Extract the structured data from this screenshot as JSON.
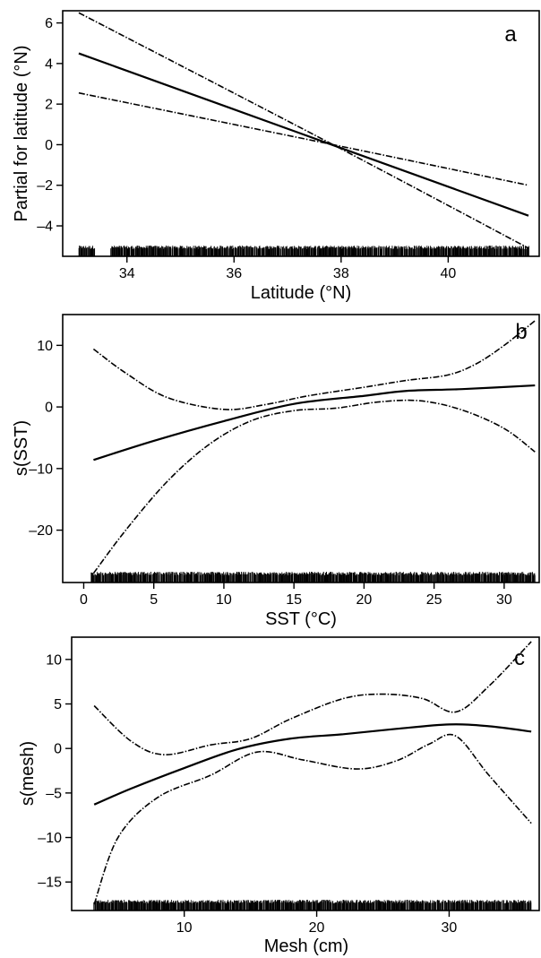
{
  "chart_data": [
    {
      "type": "line",
      "panel_label": "a",
      "xlabel": "Latitude (°N)",
      "ylabel": "Partial for latitude (°N)",
      "xlim": [
        32.8,
        41.7
      ],
      "ylim": [
        -5.5,
        6.6
      ],
      "xticks": [
        34,
        36,
        38,
        40
      ],
      "yticks": [
        -4,
        -2,
        0,
        2,
        4,
        6
      ],
      "series": [
        {
          "style": "solid",
          "x": [
            33.1,
            41.5
          ],
          "y": [
            4.5,
            -3.5
          ]
        },
        {
          "style": "dashdot",
          "x": [
            33.1,
            37.85,
            41.5
          ],
          "y": [
            6.5,
            0.0,
            -5.1
          ]
        },
        {
          "style": "dashdot",
          "x": [
            33.1,
            37.85,
            41.5
          ],
          "y": [
            2.55,
            0.0,
            -2.0
          ]
        }
      ],
      "rug": {
        "segments": [
          [
            33.1,
            33.4
          ],
          [
            33.7,
            41.5
          ]
        ]
      }
    },
    {
      "type": "line",
      "panel_label": "b",
      "xlabel": "SST (°C)",
      "ylabel": "s(SST)",
      "xlim": [
        -1.5,
        32.5
      ],
      "ylim": [
        -28.5,
        15
      ],
      "xticks": [
        0,
        5,
        10,
        15,
        20,
        25,
        30
      ],
      "yticks": [
        -20,
        -10,
        0,
        10
      ],
      "series": [
        {
          "style": "solid",
          "x": [
            0.7,
            5,
            10,
            15,
            20,
            23,
            27,
            32.2
          ],
          "y": [
            -8.6,
            -5.5,
            -2.3,
            0.5,
            1.8,
            2.6,
            2.9,
            3.5
          ]
        },
        {
          "style": "dashdot",
          "x": [
            0.7,
            3,
            6,
            10,
            13,
            16,
            20,
            23,
            26,
            28,
            30,
            32.2
          ],
          "y": [
            9.4,
            5.5,
            1.5,
            -0.4,
            0.4,
            1.8,
            3.2,
            4.3,
            5.2,
            7.0,
            10.0,
            14.0
          ]
        },
        {
          "style": "dashdot",
          "x": [
            0.7,
            3,
            6,
            9,
            12,
            15,
            18,
            21,
            24,
            27,
            30,
            32.2
          ],
          "y": [
            -27.0,
            -20.0,
            -12.0,
            -6.0,
            -2.2,
            -0.6,
            -0.2,
            0.8,
            1.0,
            -0.5,
            -3.5,
            -7.3
          ]
        }
      ],
      "rug": {
        "segments": [
          [
            0.5,
            32.2
          ]
        ]
      }
    },
    {
      "type": "line",
      "panel_label": "c",
      "xlabel": "Mesh (cm)",
      "ylabel": "s(mesh)",
      "xlim": [
        1.5,
        36.8
      ],
      "ylim": [
        -18.2,
        12.5
      ],
      "xticks": [
        10,
        20,
        30
      ],
      "yticks": [
        -15,
        -10,
        -5,
        0,
        5,
        10
      ],
      "series": [
        {
          "style": "solid",
          "x": [
            3.2,
            6,
            10,
            14,
            18,
            22,
            26,
            30,
            33,
            36.2
          ],
          "y": [
            -6.3,
            -4.5,
            -2.2,
            -0.1,
            1.1,
            1.6,
            2.2,
            2.7,
            2.5,
            1.9
          ]
        },
        {
          "style": "dashdot",
          "x": [
            3.2,
            6,
            8.5,
            12,
            15,
            18,
            22,
            25,
            28,
            30.5,
            33,
            36.2
          ],
          "y": [
            4.8,
            0.8,
            -0.7,
            0.4,
            1.1,
            3.3,
            5.6,
            6.1,
            5.6,
            4.1,
            7.0,
            12.0
          ]
        },
        {
          "style": "dashdot",
          "x": [
            3.2,
            5,
            8,
            12,
            15.5,
            19,
            23,
            26,
            28.5,
            30.5,
            33,
            36.2
          ],
          "y": [
            -17.5,
            -10.0,
            -5.5,
            -3.0,
            -0.4,
            -1.3,
            -2.3,
            -1.4,
            0.5,
            1.4,
            -3.0,
            -8.4
          ]
        }
      ],
      "rug": {
        "segments": [
          [
            3.2,
            36.2
          ]
        ]
      }
    }
  ]
}
